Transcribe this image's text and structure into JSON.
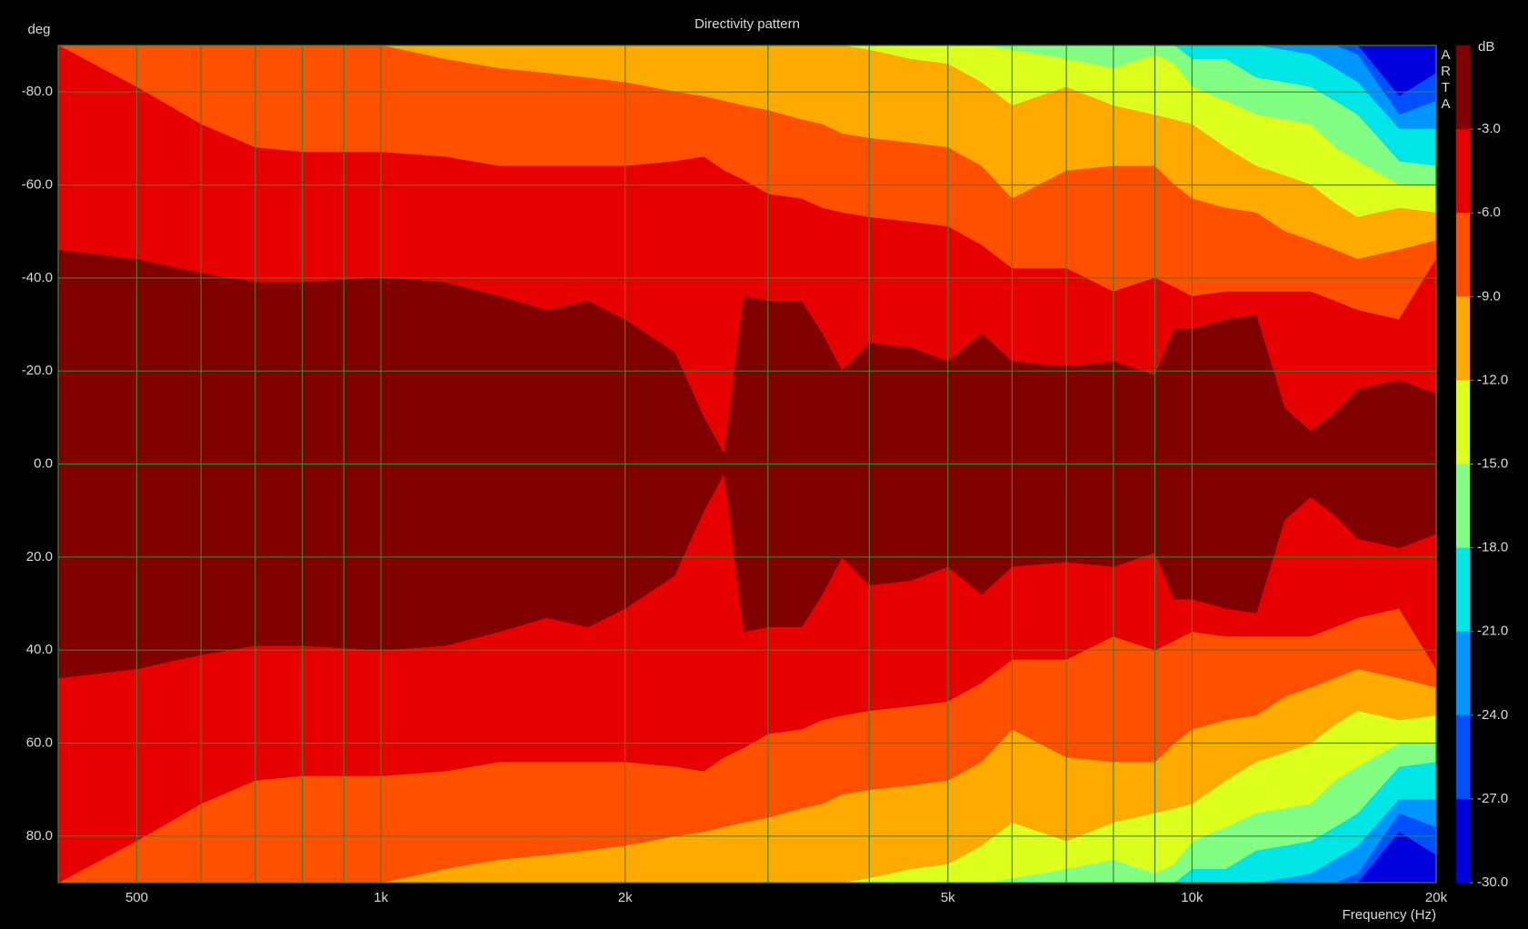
{
  "chart_data": {
    "type": "contour",
    "title": "Directivity pattern",
    "y_label": "deg",
    "x_label": "Frequency (Hz)",
    "watermark": "ARTA",
    "xlog": true,
    "xlim": [
      400,
      20000
    ],
    "xticks": [
      500,
      {
        "value": 1000,
        "label": "1k"
      },
      {
        "value": 2000,
        "label": "2k"
      },
      {
        "value": 5000,
        "label": "5k"
      },
      {
        "value": 10000,
        "label": "10k"
      },
      {
        "value": 20000,
        "label": "20k"
      }
    ],
    "xminor": [
      600,
      700,
      800,
      900,
      3000,
      4000,
      6000,
      7000,
      8000,
      9000
    ],
    "ylim": [
      -90,
      90
    ],
    "y_inverted": true,
    "yticks": [
      {
        "value": -80,
        "label": "-80.0"
      },
      {
        "value": -60,
        "label": "-60.0"
      },
      {
        "value": -40,
        "label": "-40.0"
      },
      {
        "value": -20,
        "label": "-20.0"
      },
      {
        "value": 0,
        "label": "0.0"
      },
      {
        "value": 20,
        "label": "20.0"
      },
      {
        "value": 40,
        "label": "40.0"
      },
      {
        "value": 60,
        "label": "60.0"
      },
      {
        "value": 80,
        "label": "80.0"
      }
    ],
    "grid": true,
    "symmetric": true,
    "colorbar": {
      "label": "dB",
      "lim": [
        -30,
        0
      ],
      "ticks": [
        {
          "value": -3,
          "label": "-3.0"
        },
        {
          "value": -6,
          "label": "-6.0"
        },
        {
          "value": -9,
          "label": "-9.0"
        },
        {
          "value": -12,
          "label": "-12.0"
        },
        {
          "value": -15,
          "label": "-15.0"
        },
        {
          "value": -18,
          "label": "-18.0"
        },
        {
          "value": -21,
          "label": "-21.0"
        },
        {
          "value": -24,
          "label": "-24.0"
        },
        {
          "value": -27,
          "label": "-27.0"
        },
        {
          "value": -30,
          "label": "-30.0"
        }
      ],
      "colors": [
        "#800000",
        "#e60000",
        "#ff5000",
        "#ffaa00",
        "#dcff1e",
        "#82ff82",
        "#00e6e6",
        "#0096ff",
        "#0050ff",
        "#0000dc"
      ]
    },
    "x": [
      400,
      500,
      600,
      700,
      800,
      1000,
      1200,
      1400,
      1600,
      1800,
      2000,
      2300,
      2500,
      2650,
      2800,
      3000,
      3300,
      3500,
      3700,
      4000,
      4500,
      5000,
      5500,
      6000,
      7000,
      8000,
      9000,
      9500,
      10000,
      11000,
      12000,
      13000,
      14000,
      15000,
      16000,
      18000,
      20000
    ],
    "series": [
      {
        "level": -3,
        "values": [
          46,
          44,
          41,
          39,
          39,
          40,
          39,
          36,
          33,
          35,
          31,
          24,
          10,
          2,
          36,
          35,
          35,
          28,
          20,
          26,
          25,
          22,
          28,
          22,
          21,
          22,
          19,
          29,
          29,
          31,
          32,
          12,
          7,
          11,
          16,
          18,
          15
        ]
      },
      {
        "level": -6,
        "values": [
          90,
          81,
          73,
          68,
          67,
          67,
          66,
          64,
          64,
          64,
          64,
          65,
          66,
          63,
          61,
          58,
          57,
          55,
          54,
          53,
          52,
          51,
          47,
          42,
          42,
          37,
          40,
          38,
          36,
          37,
          37,
          37,
          37,
          35,
          33,
          31,
          44
        ]
      },
      {
        "level": -9,
        "values": [
          90,
          90,
          90,
          90,
          90,
          90,
          87,
          85,
          84,
          83,
          82,
          80,
          79,
          78,
          77,
          76,
          74,
          73,
          71,
          70,
          69,
          68,
          64,
          57,
          63,
          64,
          64,
          60,
          57,
          55,
          54,
          50,
          48,
          46,
          44,
          46,
          48
        ]
      },
      {
        "level": -12,
        "values": [
          90,
          90,
          90,
          90,
          90,
          90,
          90,
          90,
          90,
          90,
          90,
          90,
          90,
          90,
          90,
          90,
          90,
          90,
          90,
          89,
          87,
          86,
          82,
          77,
          81,
          77,
          75,
          74,
          73,
          68,
          64,
          62,
          60,
          56,
          53,
          55,
          54
        ]
      },
      {
        "level": -15,
        "values": [
          90,
          90,
          90,
          90,
          90,
          90,
          90,
          90,
          90,
          90,
          90,
          90,
          90,
          90,
          90,
          90,
          90,
          90,
          90,
          90,
          90,
          90,
          90,
          89,
          87,
          85,
          88,
          86,
          81,
          78,
          75,
          74,
          73,
          68,
          65,
          60,
          60
        ]
      },
      {
        "level": -18,
        "values": [
          90,
          90,
          90,
          90,
          90,
          90,
          90,
          90,
          90,
          90,
          90,
          90,
          90,
          90,
          90,
          90,
          90,
          90,
          90,
          90,
          90,
          90,
          90,
          90,
          90,
          90,
          90,
          90,
          87,
          87,
          83,
          82,
          81,
          78,
          75,
          65,
          64
        ]
      },
      {
        "level": -21,
        "values": [
          90,
          90,
          90,
          90,
          90,
          90,
          90,
          90,
          90,
          90,
          90,
          90,
          90,
          90,
          90,
          90,
          90,
          90,
          90,
          90,
          90,
          90,
          90,
          90,
          90,
          90,
          90,
          90,
          90,
          90,
          90,
          89,
          88,
          85,
          82,
          72,
          72
        ]
      },
      {
        "level": -24,
        "values": [
          90,
          90,
          90,
          90,
          90,
          90,
          90,
          90,
          90,
          90,
          90,
          90,
          90,
          90,
          90,
          90,
          90,
          90,
          90,
          90,
          90,
          90,
          90,
          90,
          90,
          90,
          90,
          90,
          90,
          90,
          90,
          90,
          90,
          90,
          88,
          75,
          78
        ]
      },
      {
        "level": -27,
        "values": [
          90,
          90,
          90,
          90,
          90,
          90,
          90,
          90,
          90,
          90,
          90,
          90,
          90,
          90,
          90,
          90,
          90,
          90,
          90,
          90,
          90,
          90,
          90,
          90,
          90,
          90,
          90,
          90,
          90,
          90,
          90,
          90,
          90,
          90,
          90,
          79,
          84
        ]
      }
    ]
  }
}
